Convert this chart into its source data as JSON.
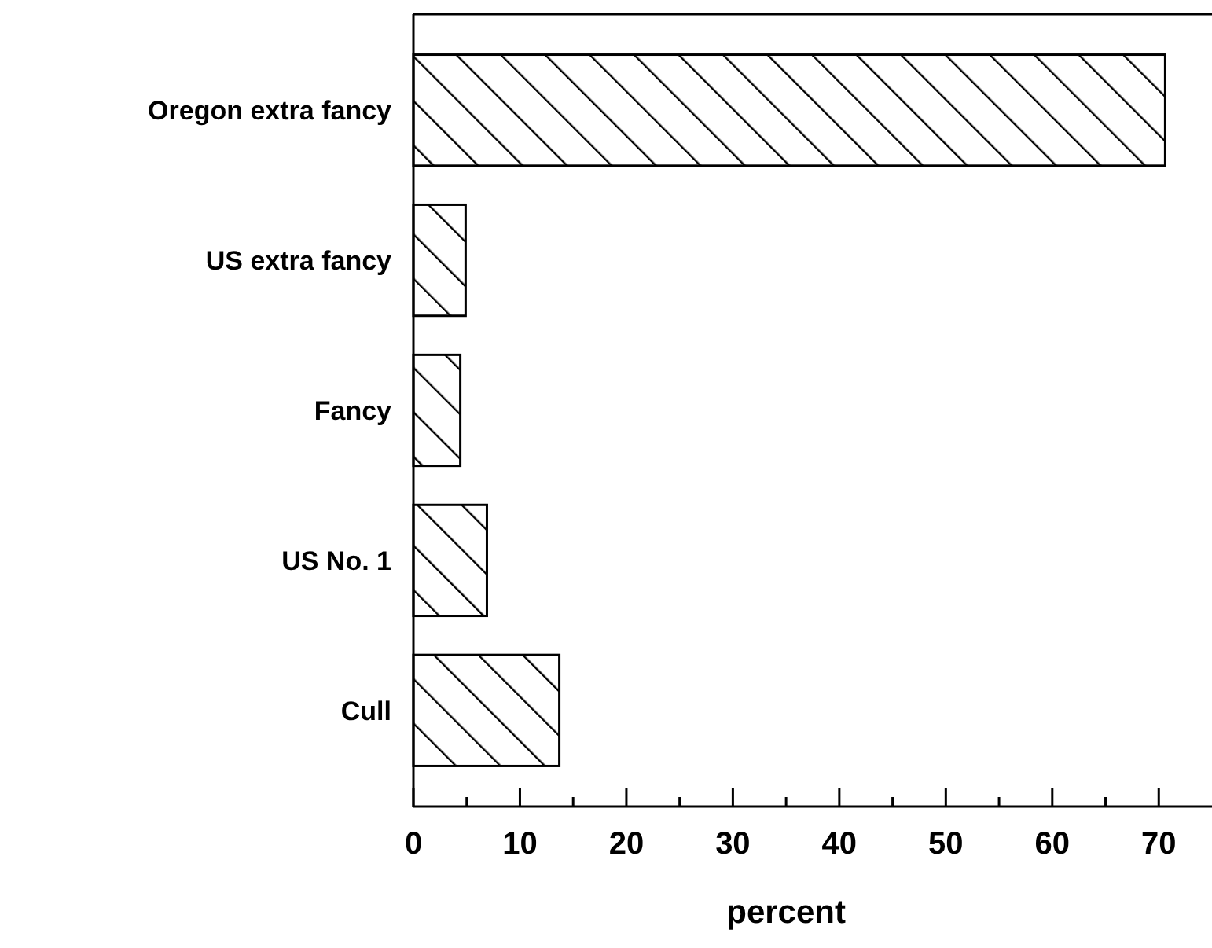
{
  "chart_data": {
    "type": "bar",
    "orientation": "horizontal",
    "xlabel": "percent",
    "categories": [
      "Oregon extra fancy",
      "US extra fancy",
      "Fancy",
      "US No. 1",
      "Cull"
    ],
    "values": [
      70.6,
      4.9,
      4.4,
      6.9,
      13.7
    ],
    "color": "#000000",
    "xlim": [
      0,
      75
    ],
    "xticks": [
      0,
      {
        "value": 5,
        "label": null
      },
      10,
      {
        "value": 15,
        "label": null
      },
      20,
      {
        "value": 25,
        "label": null
      },
      30,
      {
        "value": 35,
        "label": null
      },
      40,
      {
        "value": 45,
        "label": null
      },
      50,
      {
        "value": 55,
        "label": null
      },
      60,
      {
        "value": 65,
        "label": null
      },
      70
    ],
    "grid": false
  }
}
